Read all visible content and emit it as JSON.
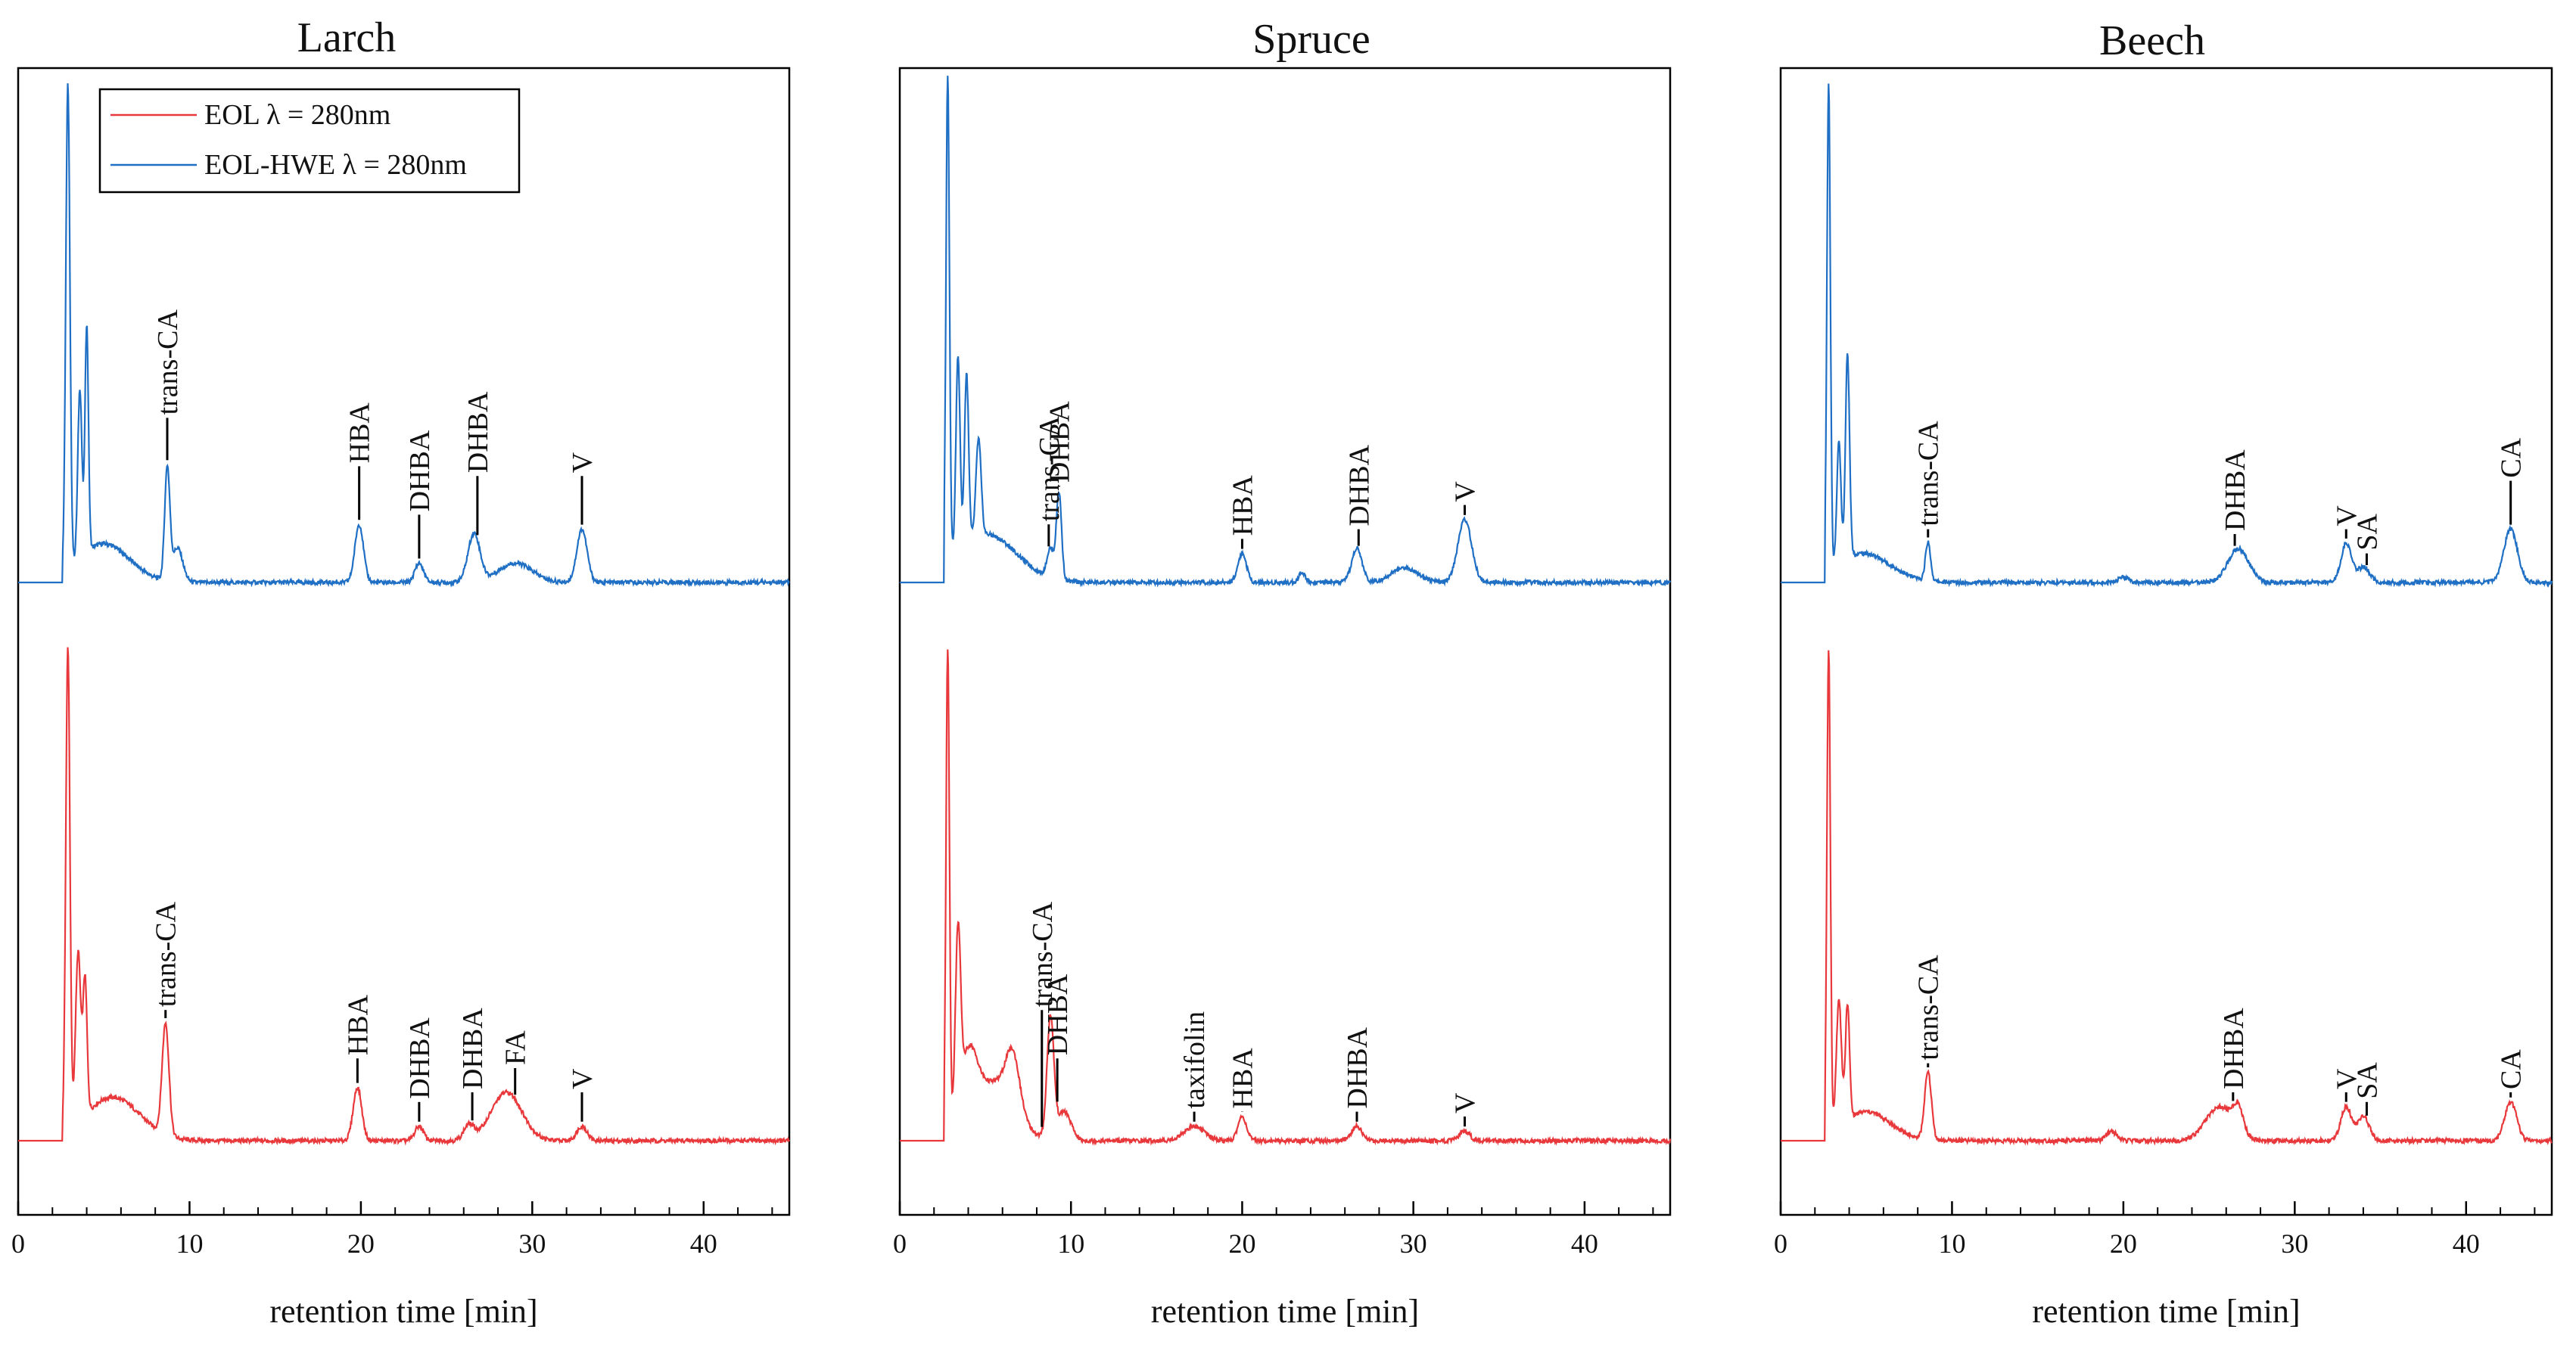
{
  "colors": {
    "EOL": "#e8383b",
    "EOL-HWE": "#1f6fc4"
  },
  "legend": [
    {
      "series": "EOL",
      "label": "EOL λ = 280nm"
    },
    {
      "series": "EOL-HWE",
      "label": "EOL-HWE λ = 280nm"
    }
  ],
  "chart_data": [
    {
      "type": "line",
      "title": "Larch",
      "xlabel": "retention time [min]",
      "ylabel": "",
      "xlim": [
        0,
        45
      ],
      "xticks": [
        0,
        10,
        20,
        30,
        40
      ],
      "series": [
        {
          "name": "EOL-HWE λ = 280nm",
          "key": "EOL-HWE",
          "baseline": 0,
          "peaks": [
            [
              2.9,
              100,
              0.12
            ],
            [
              3.6,
              35,
              0.12
            ],
            [
              4.0,
              47,
              0.1
            ],
            [
              5.0,
              8,
              1.5
            ],
            [
              8.7,
              23,
              0.15
            ],
            [
              9.3,
              7,
              0.3
            ],
            [
              19.9,
              12,
              0.25
            ],
            [
              23.4,
              4,
              0.25
            ],
            [
              26.6,
              10,
              0.35
            ],
            [
              29.0,
              4,
              1.0
            ],
            [
              32.9,
              11,
              0.3
            ]
          ],
          "labels": [
            {
              "text": "trans-CA",
              "x": 8.7,
              "y": 34
            },
            {
              "text": "HBA",
              "x": 19.9,
              "y": 24
            },
            {
              "text": "DHBA",
              "x": 23.4,
              "y": 14
            },
            {
              "text": "DHBA",
              "x": 26.8,
              "y": 22
            },
            {
              "text": "V",
              "x": 32.9,
              "y": 22
            }
          ]
        },
        {
          "name": "EOL λ = 280nm",
          "key": "EOL",
          "baseline": 0,
          "peaks": [
            [
              2.9,
              100,
              0.12
            ],
            [
              3.5,
              35,
              0.15
            ],
            [
              3.9,
              28,
              0.12
            ],
            [
              5.5,
              9,
              1.6
            ],
            [
              8.6,
              23,
              0.2
            ],
            [
              19.8,
              11,
              0.25
            ],
            [
              23.4,
              3,
              0.25
            ],
            [
              26.3,
              3,
              0.3
            ],
            [
              28.5,
              10,
              0.9
            ],
            [
              32.9,
              3,
              0.3
            ]
          ],
          "labels": [
            {
              "text": "trans-CA",
              "x": 8.6,
              "y": 27
            },
            {
              "text": "HBA",
              "x": 19.8,
              "y": 17
            },
            {
              "text": "DHBA",
              "x": 23.4,
              "y": 8
            },
            {
              "text": "DHBA",
              "x": 26.5,
              "y": 10
            },
            {
              "text": "FA",
              "x": 29.0,
              "y": 15
            },
            {
              "text": "V",
              "x": 32.9,
              "y": 10
            }
          ]
        }
      ]
    },
    {
      "type": "line",
      "title": "Spruce",
      "xlabel": "retention time [min]",
      "ylabel": "",
      "xlim": [
        0,
        45
      ],
      "xticks": [
        0,
        10,
        20,
        30,
        40
      ],
      "series": [
        {
          "name": "EOL-HWE λ = 280nm",
          "key": "EOL-HWE",
          "baseline": 0,
          "peaks": [
            [
              2.8,
              100,
              0.1
            ],
            [
              3.4,
              40,
              0.12
            ],
            [
              3.9,
              35,
              0.12
            ],
            [
              4.6,
              20,
              0.15
            ],
            [
              5.0,
              10,
              1.8
            ],
            [
              8.8,
              6,
              0.2
            ],
            [
              9.3,
              18,
              0.15
            ],
            [
              20.0,
              6,
              0.25
            ],
            [
              23.5,
              2,
              0.2
            ],
            [
              26.7,
              7,
              0.3
            ],
            [
              29.5,
              3,
              0.8
            ],
            [
              33.0,
              13,
              0.4
            ]
          ],
          "labels": [
            {
              "text": "trans-CA",
              "x": 8.7,
              "y": 12
            },
            {
              "text": "DHBA",
              "x": 9.3,
              "y": 20
            },
            {
              "text": "HBA",
              "x": 20.0,
              "y": 9
            },
            {
              "text": "DHBA",
              "x": 26.8,
              "y": 11
            },
            {
              "text": "V",
              "x": 33.0,
              "y": 16
            }
          ]
        },
        {
          "name": "EOL λ = 280nm",
          "key": "EOL",
          "baseline": 0,
          "peaks": [
            [
              2.8,
              100,
              0.1
            ],
            [
              3.4,
              36,
              0.15
            ],
            [
              4.0,
              14,
              0.5
            ],
            [
              5.5,
              12,
              1.2
            ],
            [
              6.6,
              11,
              0.4
            ],
            [
              8.8,
              25,
              0.2
            ],
            [
              9.6,
              6,
              0.4
            ],
            [
              17.2,
              3,
              0.6
            ],
            [
              20.0,
              5,
              0.25
            ],
            [
              26.7,
              3,
              0.3
            ],
            [
              33.0,
              2,
              0.3
            ]
          ],
          "labels": [
            {
              "text": "trans-CA",
              "x": 8.3,
              "y": 27
            },
            {
              "text": "DHBA",
              "x": 9.2,
              "y": 17
            },
            {
              "text": "taxifolin",
              "x": 17.2,
              "y": 6
            },
            {
              "text": "HBA",
              "x": 20.0,
              "y": 6
            },
            {
              "text": "DHBA",
              "x": 26.7,
              "y": 6
            },
            {
              "text": "V",
              "x": 33.0,
              "y": 5
            }
          ]
        }
      ]
    },
    {
      "type": "line",
      "title": "Beech",
      "xlabel": "retention time [min]",
      "ylabel": "",
      "xlim": [
        0,
        45
      ],
      "xticks": [
        0,
        10,
        20,
        30,
        40
      ],
      "series": [
        {
          "name": "EOL-HWE λ = 280nm",
          "key": "EOL-HWE",
          "baseline": 0,
          "peaks": [
            [
              2.8,
              100,
              0.1
            ],
            [
              3.4,
              25,
              0.12
            ],
            [
              3.9,
              42,
              0.12
            ],
            [
              4.8,
              6,
              1.6
            ],
            [
              8.6,
              8,
              0.15
            ],
            [
              20.0,
              1,
              0.3
            ],
            [
              26.7,
              7,
              0.6
            ],
            [
              33.0,
              8,
              0.3
            ],
            [
              34.0,
              3,
              0.4
            ],
            [
              42.6,
              11,
              0.4
            ]
          ],
          "labels": [
            {
              "text": "trans-CA",
              "x": 8.6,
              "y": 11
            },
            {
              "text": "DHBA",
              "x": 26.5,
              "y": 10
            },
            {
              "text": "V",
              "x": 33.0,
              "y": 11
            },
            {
              "text": "SA",
              "x": 34.2,
              "y": 6
            },
            {
              "text": "CA",
              "x": 42.6,
              "y": 21
            }
          ]
        },
        {
          "name": "EOL λ = 280nm",
          "key": "EOL",
          "baseline": 0,
          "peaks": [
            [
              2.8,
              100,
              0.1
            ],
            [
              3.4,
              26,
              0.15
            ],
            [
              3.9,
              24,
              0.12
            ],
            [
              5.0,
              6,
              1.4
            ],
            [
              8.6,
              14,
              0.2
            ],
            [
              19.3,
              2,
              0.3
            ],
            [
              25.6,
              7,
              0.8
            ],
            [
              26.7,
              5,
              0.3
            ],
            [
              33.0,
              7,
              0.3
            ],
            [
              34.0,
              5,
              0.35
            ],
            [
              42.6,
              8,
              0.35
            ]
          ],
          "labels": [
            {
              "text": "trans-CA",
              "x": 8.6,
              "y": 16
            },
            {
              "text": "DHBA",
              "x": 26.4,
              "y": 10
            },
            {
              "text": "V",
              "x": 33.0,
              "y": 10
            },
            {
              "text": "SA",
              "x": 34.2,
              "y": 8
            },
            {
              "text": "CA",
              "x": 42.6,
              "y": 10
            }
          ]
        }
      ]
    }
  ]
}
